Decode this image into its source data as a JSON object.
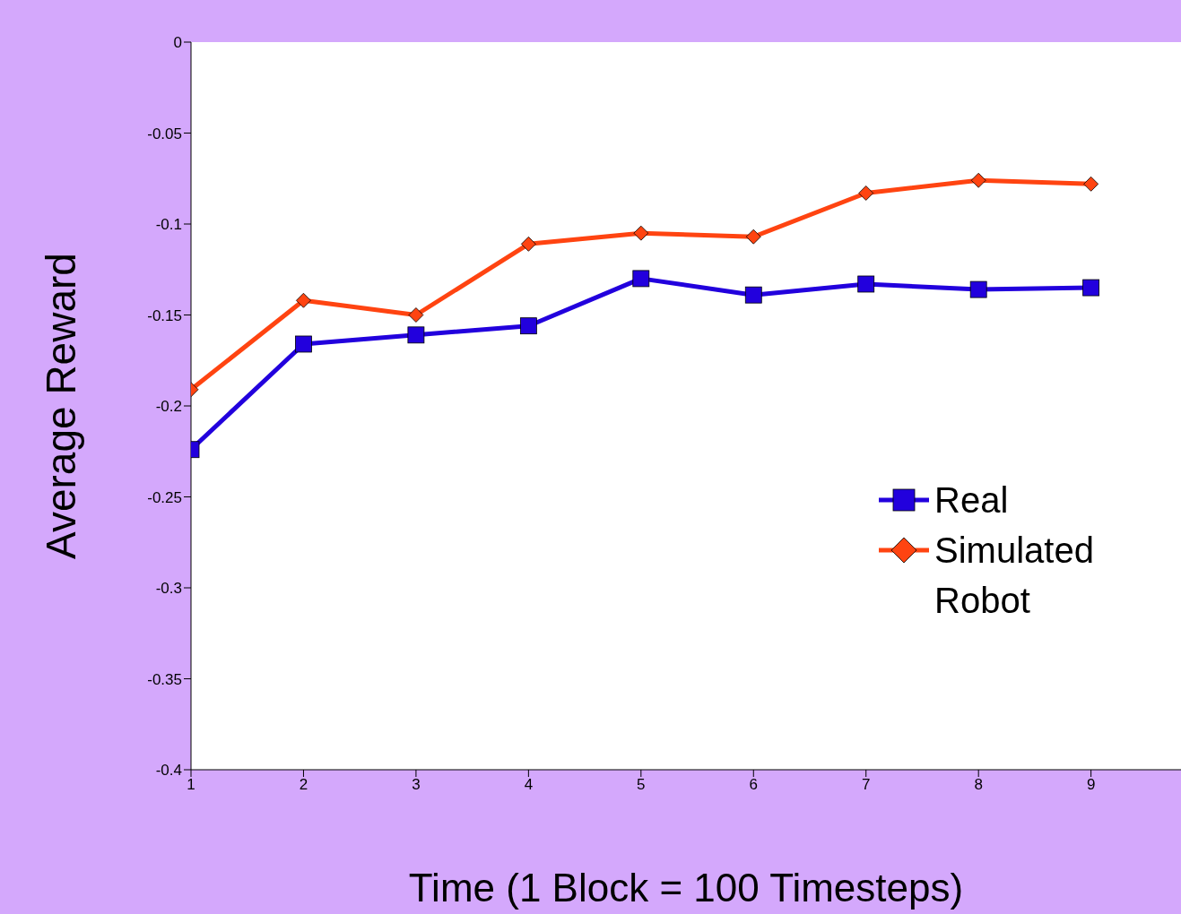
{
  "chart_data": {
    "type": "line",
    "xlabel": "Time (1 Block = 100 Timesteps)",
    "ylabel": "Average Reward",
    "x": [
      1,
      2,
      3,
      4,
      5,
      6,
      7,
      8,
      9
    ],
    "xlim": [
      1,
      9.8
    ],
    "xticks": [
      1,
      2,
      3,
      4,
      5,
      6,
      7,
      8,
      9
    ],
    "ylim": [
      -0.4,
      0
    ],
    "yticks": [
      -0.4,
      -0.35,
      -0.3,
      -0.25,
      -0.2,
      -0.15,
      -0.1,
      -0.05,
      0
    ],
    "grid": false,
    "legend": "right",
    "series": [
      {
        "name": "Real",
        "color": "#2200dd",
        "marker": "square",
        "values": [
          -0.224,
          -0.166,
          -0.161,
          -0.156,
          -0.13,
          -0.139,
          -0.133,
          -0.136,
          -0.135
        ]
      },
      {
        "name": "Simulated Robot",
        "color": "#ff4411",
        "marker": "diamond",
        "values": [
          -0.191,
          -0.142,
          -0.15,
          -0.111,
          -0.105,
          -0.107,
          -0.083,
          -0.076,
          -0.078
        ]
      }
    ]
  }
}
